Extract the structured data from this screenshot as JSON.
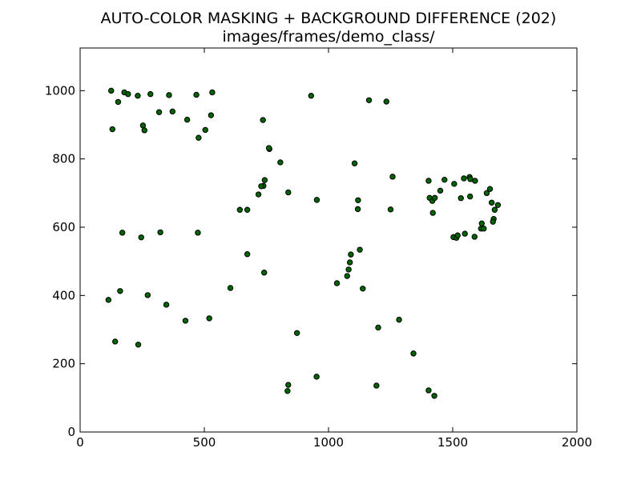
{
  "chart_data": {
    "type": "scatter",
    "title": "AUTO-COLOR MASKING + BACKGROUND DIFFERENCE (202)",
    "subtitle": "images/frames/demo_class/",
    "xlabel": "",
    "ylabel": "",
    "xlim": [
      0,
      2000
    ],
    "ylim": [
      0,
      1125
    ],
    "xticks": [
      0,
      500,
      1000,
      1500,
      2000
    ],
    "yticks": [
      0,
      200,
      400,
      600,
      800,
      1000
    ],
    "grid": false,
    "marker_color": "#006400",
    "marker_edge": "#000000",
    "points": [
      [
        125,
        1000
      ],
      [
        178,
        995
      ],
      [
        193,
        990
      ],
      [
        232,
        985
      ],
      [
        283,
        990
      ],
      [
        358,
        987
      ],
      [
        468,
        988
      ],
      [
        532,
        995
      ],
      [
        153,
        967
      ],
      [
        318,
        937
      ],
      [
        372,
        939
      ],
      [
        431,
        915
      ],
      [
        527,
        928
      ],
      [
        130,
        887
      ],
      [
        253,
        898
      ],
      [
        259,
        884
      ],
      [
        477,
        862
      ],
      [
        504,
        885
      ],
      [
        930,
        985
      ],
      [
        1163,
        972
      ],
      [
        1233,
        968
      ],
      [
        736,
        914
      ],
      [
        762,
        829
      ],
      [
        760,
        832
      ],
      [
        806,
        790
      ],
      [
        743,
        738
      ],
      [
        738,
        721
      ],
      [
        729,
        720
      ],
      [
        718,
        696
      ],
      [
        838,
        702
      ],
      [
        953,
        680
      ],
      [
        1105,
        787
      ],
      [
        1119,
        679
      ],
      [
        1118,
        653
      ],
      [
        1258,
        748
      ],
      [
        1250,
        652
      ],
      [
        643,
        651
      ],
      [
        673,
        651
      ],
      [
        1403,
        736
      ],
      [
        1467,
        739
      ],
      [
        1407,
        686
      ],
      [
        1418,
        677
      ],
      [
        1428,
        686
      ],
      [
        1450,
        707
      ],
      [
        1420,
        642
      ],
      [
        1506,
        727
      ],
      [
        1533,
        685
      ],
      [
        1545,
        743
      ],
      [
        1568,
        747
      ],
      [
        1571,
        741
      ],
      [
        1590,
        736
      ],
      [
        1570,
        690
      ],
      [
        1637,
        700
      ],
      [
        1650,
        712
      ],
      [
        1682,
        665
      ],
      [
        1669,
        651
      ],
      [
        1657,
        672
      ],
      [
        1665,
        624
      ],
      [
        1662,
        616
      ],
      [
        1617,
        611
      ],
      [
        1614,
        596
      ],
      [
        1625,
        596
      ],
      [
        1588,
        572
      ],
      [
        1549,
        581
      ],
      [
        1503,
        571
      ],
      [
        1515,
        569
      ],
      [
        1520,
        576
      ],
      [
        170,
        584
      ],
      [
        246,
        570
      ],
      [
        323,
        585
      ],
      [
        474,
        584
      ],
      [
        673,
        521
      ],
      [
        1090,
        520
      ],
      [
        1126,
        534
      ],
      [
        1086,
        497
      ],
      [
        1081,
        476
      ],
      [
        1075,
        457
      ],
      [
        1034,
        436
      ],
      [
        1138,
        420
      ],
      [
        605,
        422
      ],
      [
        741,
        467
      ],
      [
        114,
        387
      ],
      [
        161,
        413
      ],
      [
        272,
        401
      ],
      [
        347,
        373
      ],
      [
        424,
        326
      ],
      [
        520,
        333
      ],
      [
        141,
        265
      ],
      [
        234,
        256
      ],
      [
        873,
        290
      ],
      [
        1200,
        306
      ],
      [
        1284,
        329
      ],
      [
        1342,
        230
      ],
      [
        952,
        162
      ],
      [
        838,
        138
      ],
      [
        835,
        120
      ],
      [
        1193,
        136
      ],
      [
        1403,
        122
      ],
      [
        1426,
        106
      ]
    ]
  }
}
